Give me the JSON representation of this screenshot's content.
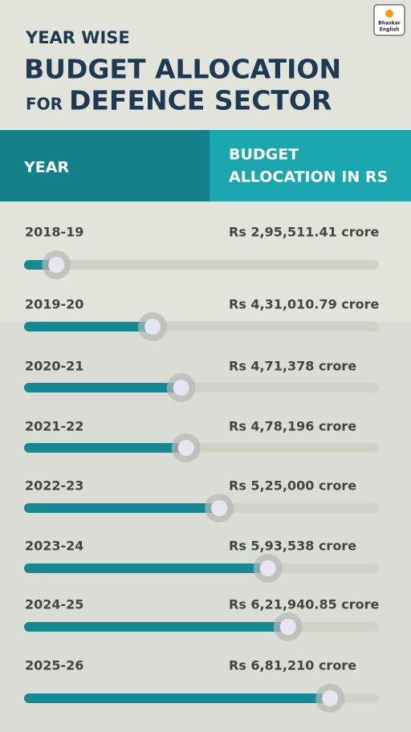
{
  "header": {
    "subtitle": "YEAR WISE",
    "title_line1": "BUDGET ALLOCATION",
    "title_prefix": "FOR",
    "title_line2": "DEFENCE SECTOR",
    "logo": [
      "Bhaskar",
      "English"
    ]
  },
  "table_header": {
    "col1": "YEAR",
    "col2": [
      "BUDGET",
      "ALLOCATION IN RS"
    ]
  },
  "chart_data": {
    "type": "bar",
    "orientation": "horizontal",
    "color": "#168893",
    "categories": [
      "2018-19",
      "2019-20",
      "2020-21",
      "2021-22",
      "2022-23",
      "2023-24",
      "2024-25",
      "2025-26"
    ],
    "values": [
      295511.41,
      431010.79,
      471378,
      478196,
      525000,
      593538,
      621940.85,
      681210
    ],
    "value_labels": [
      "Rs 2,95,511.41 crore",
      "Rs 4,31,010.79 crore",
      "Rs 4,71,378 crore",
      "Rs 4,78,196 crore",
      "Rs 5,25,000 crore",
      "Rs 5,93,538 crore",
      "Rs 6,21,940.85 crore",
      "Rs 6,81,210 crore"
    ],
    "xlim": [
      250000,
      750000
    ]
  }
}
